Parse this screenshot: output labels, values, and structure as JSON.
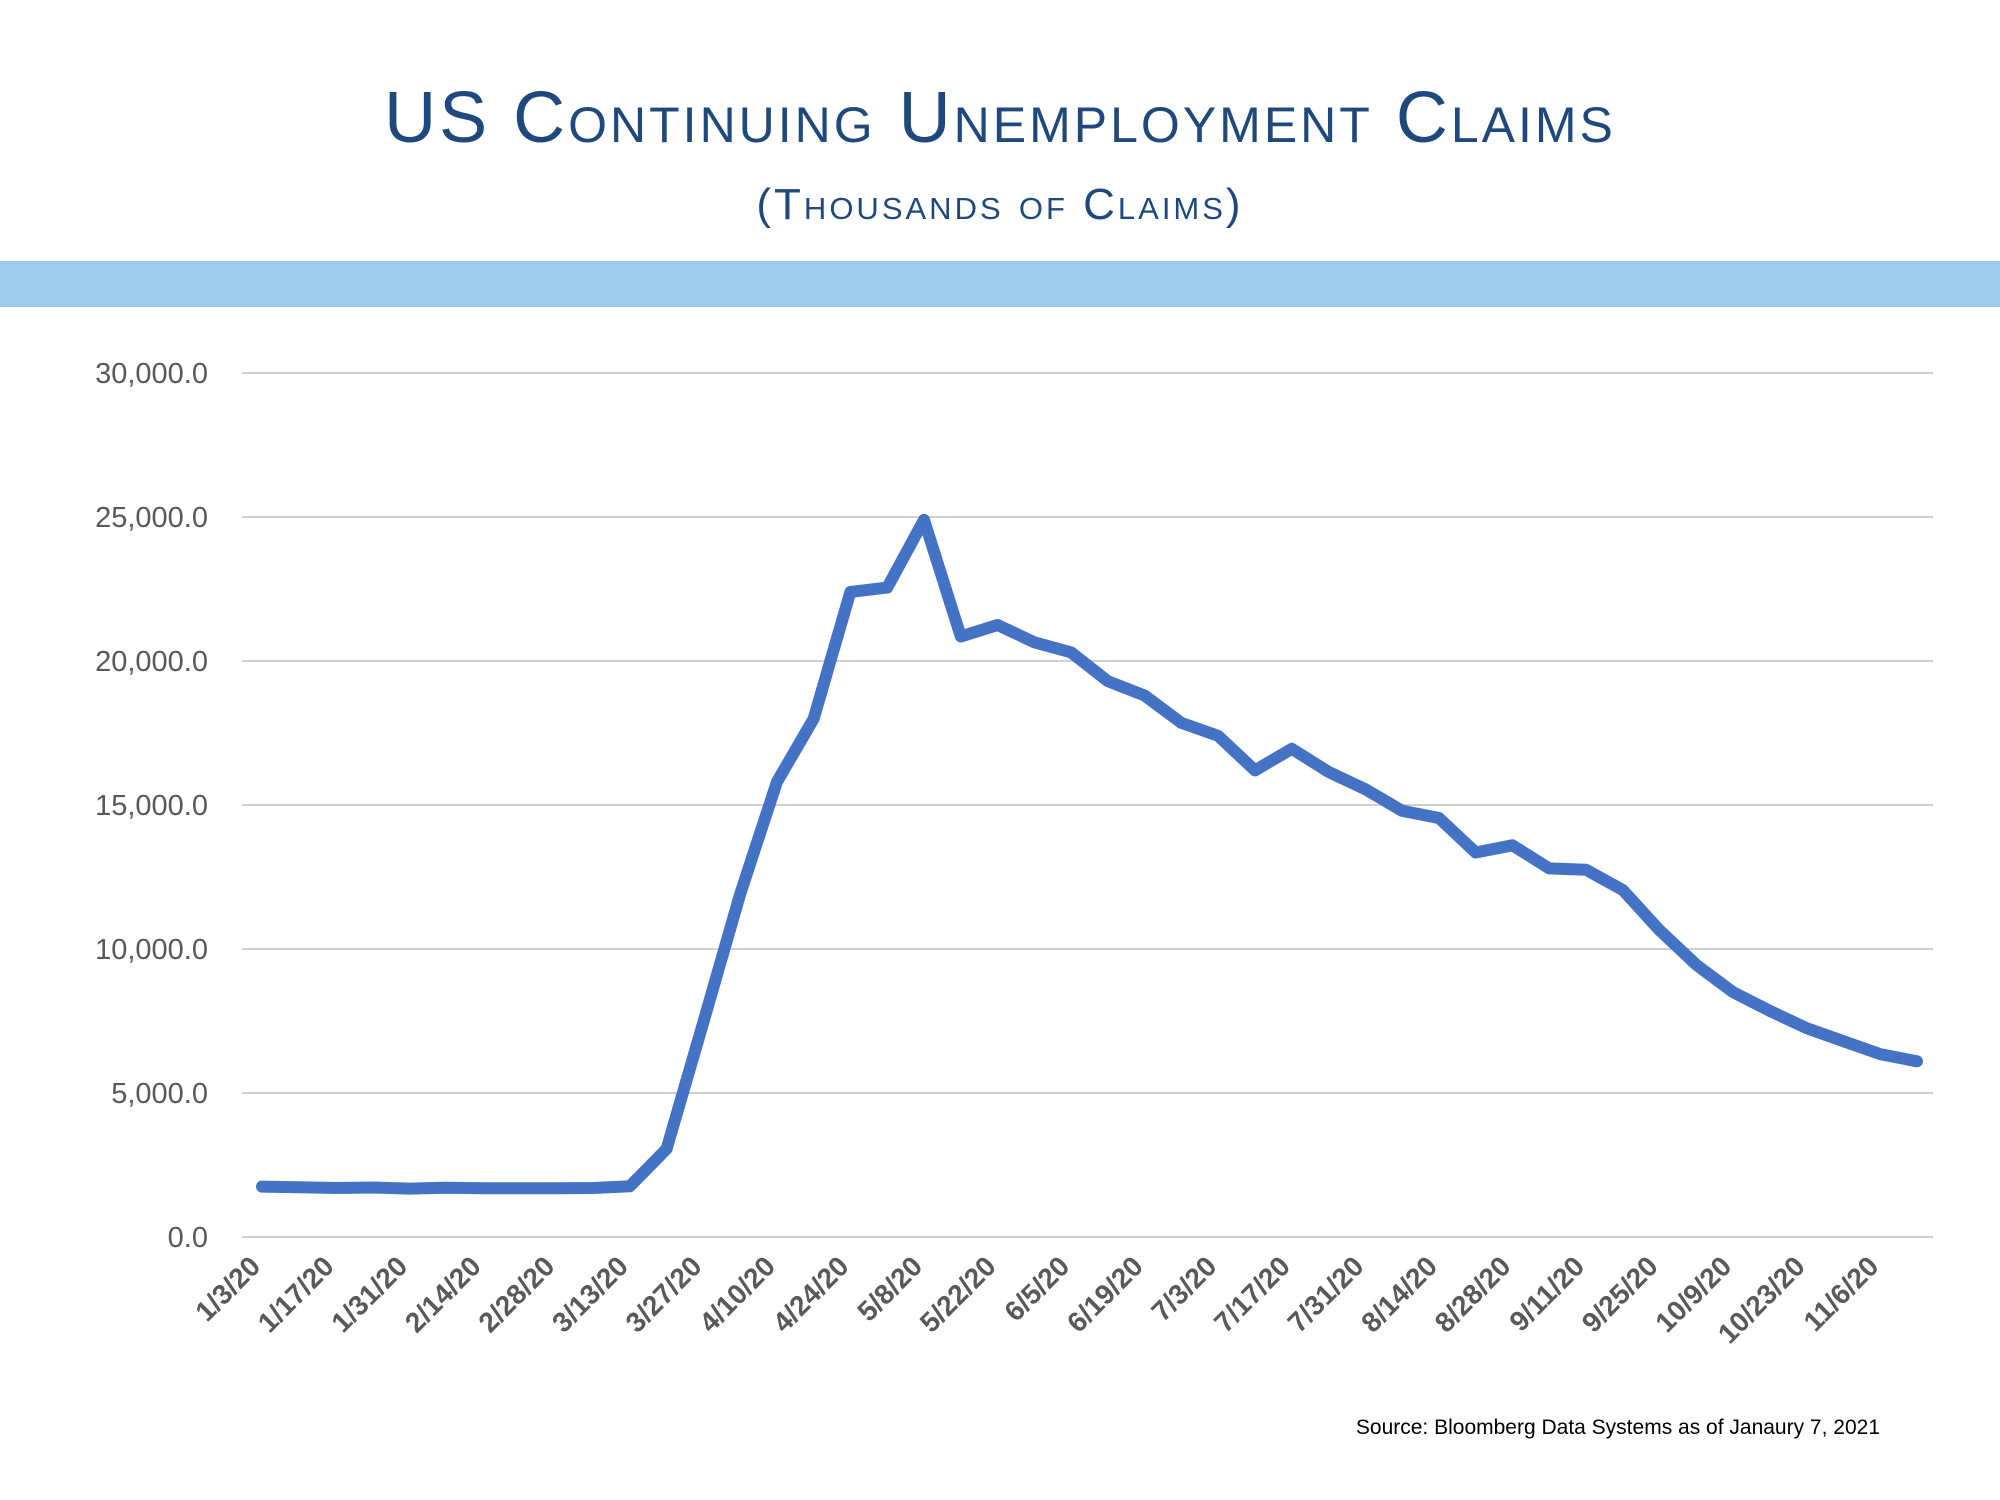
{
  "header": {
    "title": "US Continuing Unemployment Claims",
    "subtitle": "(Thousands of Claims)"
  },
  "colors": {
    "title": "#1f497d",
    "band": "#9dcbec",
    "line": "#4472c4",
    "grid": "#c0c0c0",
    "tick_text": "#595959"
  },
  "footer": {
    "source": "Source:  Bloomberg Data Systems as of Janaury 7, 2021"
  },
  "chart_data": {
    "type": "line",
    "title": "US Continuing Unemployment Claims",
    "subtitle": "(Thousands of Claims)",
    "xlabel": "",
    "ylabel": "",
    "ylim": [
      0,
      30000
    ],
    "yticks": [
      0,
      5000,
      10000,
      15000,
      20000,
      25000,
      30000
    ],
    "ytick_labels": [
      "0.0",
      "5,000.0",
      "10,000.0",
      "15,000.0",
      "20,000.0",
      "25,000.0",
      "30,000.0"
    ],
    "grid": true,
    "legend": "none",
    "x_tick_labels": [
      "1/3/20",
      "1/17/20",
      "1/31/20",
      "2/14/20",
      "2/28/20",
      "3/13/20",
      "3/27/20",
      "4/10/20",
      "4/24/20",
      "5/8/20",
      "5/22/20",
      "6/5/20",
      "6/19/20",
      "7/3/20",
      "7/17/20",
      "7/31/20",
      "8/14/20",
      "8/28/20",
      "9/11/20",
      "9/25/20",
      "10/9/20",
      "10/23/20",
      "11/6/20"
    ],
    "x": [
      "1/3/20",
      "1/10/20",
      "1/17/20",
      "1/24/20",
      "1/31/20",
      "2/7/20",
      "2/14/20",
      "2/21/20",
      "2/28/20",
      "3/6/20",
      "3/13/20",
      "3/20/20",
      "3/27/20",
      "4/3/20",
      "4/10/20",
      "4/17/20",
      "4/24/20",
      "5/1/20",
      "5/8/20",
      "5/15/20",
      "5/22/20",
      "5/29/20",
      "6/5/20",
      "6/12/20",
      "6/19/20",
      "6/26/20",
      "7/3/20",
      "7/10/20",
      "7/17/20",
      "7/24/20",
      "7/31/20",
      "8/7/20",
      "8/14/20",
      "8/21/20",
      "8/28/20",
      "9/4/20",
      "9/11/20",
      "9/18/20",
      "9/25/20",
      "10/2/20",
      "10/9/20",
      "10/16/20",
      "10/23/20",
      "10/30/20",
      "11/6/20",
      "11/13/20"
    ],
    "series": [
      {
        "values": [
          1750,
          1730,
          1700,
          1720,
          1680,
          1710,
          1690,
          1690,
          1690,
          1700,
          1760,
          3060,
          7450,
          11900,
          15800,
          18000,
          22400,
          22550,
          24900,
          20850,
          21250,
          20650,
          20300,
          19300,
          18800,
          17850,
          17400,
          16200,
          16950,
          16150,
          15550,
          14800,
          14550,
          13350,
          13600,
          12800,
          12750,
          12050,
          10650,
          9450,
          8500,
          7850,
          7250,
          6800,
          6350,
          6100
        ]
      }
    ]
  }
}
